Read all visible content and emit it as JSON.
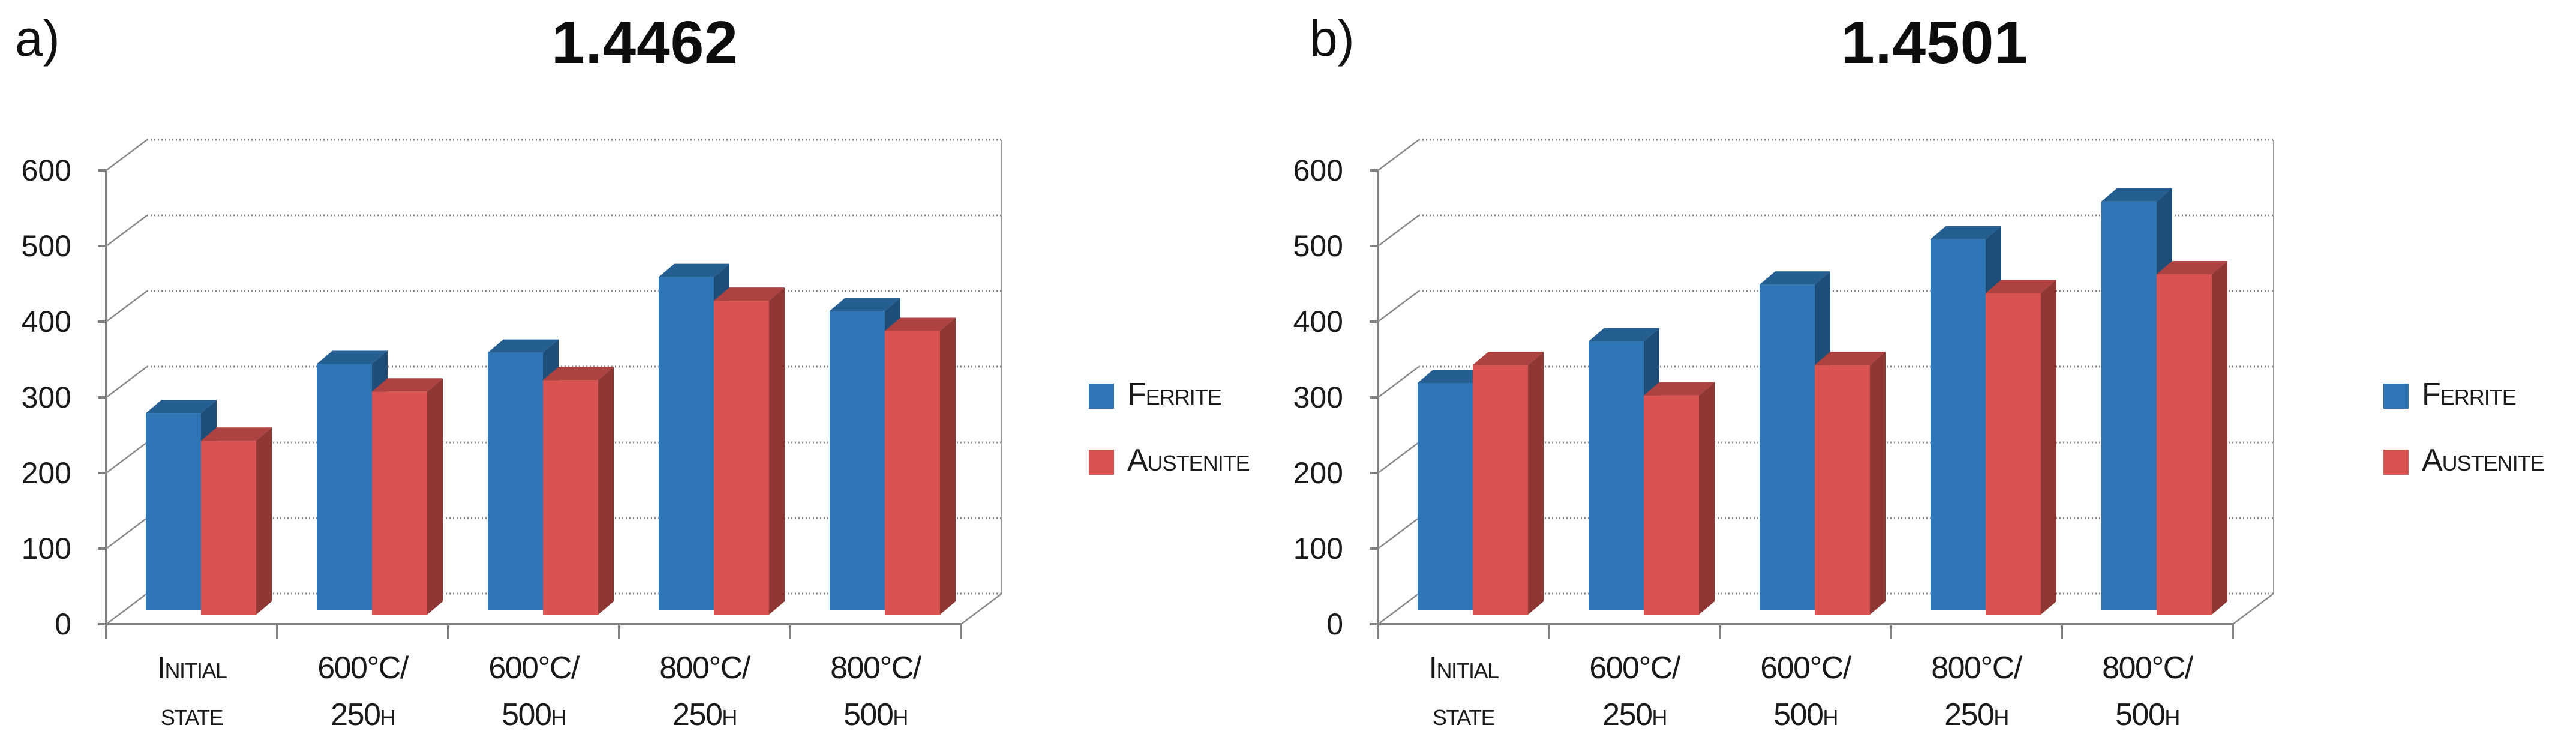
{
  "chart_data": [
    {
      "type": "bar",
      "bar_style": "3d-clustered",
      "panel_label": "a)",
      "title": "1.4462",
      "categories": [
        [
          "Initial",
          "state"
        ],
        [
          "600°C/",
          "250h"
        ],
        [
          "600°C/",
          "500h"
        ],
        [
          "800°C/",
          "250h"
        ],
        [
          "800°C/",
          "500h"
        ]
      ],
      "series": [
        {
          "name": "Ferrite",
          "color": "#2E76B5",
          "values": [
            260,
            325,
            340,
            440,
            395
          ]
        },
        {
          "name": "Austenite",
          "color": "#D95350",
          "values": [
            230,
            295,
            310,
            415,
            375
          ]
        }
      ],
      "xlabel": "",
      "ylabel": "",
      "ylim": [
        0,
        600
      ],
      "yticks": [
        0,
        100,
        200,
        300,
        400,
        500,
        600
      ],
      "grid": true,
      "legend_position": "right"
    },
    {
      "type": "bar",
      "bar_style": "3d-clustered",
      "panel_label": "b)",
      "title": "1.4501",
      "categories": [
        [
          "Initial",
          "state"
        ],
        [
          "600°C/",
          "250h"
        ],
        [
          "600°C/",
          "500h"
        ],
        [
          "800°C/",
          "250h"
        ],
        [
          "800°C/",
          "500h"
        ]
      ],
      "series": [
        {
          "name": "Ferrite",
          "color": "#2E76B5",
          "values": [
            300,
            355,
            430,
            490,
            540
          ]
        },
        {
          "name": "Austenite",
          "color": "#D95350",
          "values": [
            330,
            290,
            330,
            425,
            450
          ]
        }
      ],
      "xlabel": "",
      "ylabel": "",
      "ylim": [
        0,
        600
      ],
      "yticks": [
        0,
        100,
        200,
        300,
        400,
        500,
        600
      ],
      "grid": true,
      "legend_position": "right"
    }
  ],
  "colors": {
    "ferrite": "#2E76B5",
    "austenite": "#D95350",
    "gridline": "#8a8a8a",
    "axis": "#808080",
    "text": "#1a1a1a"
  }
}
